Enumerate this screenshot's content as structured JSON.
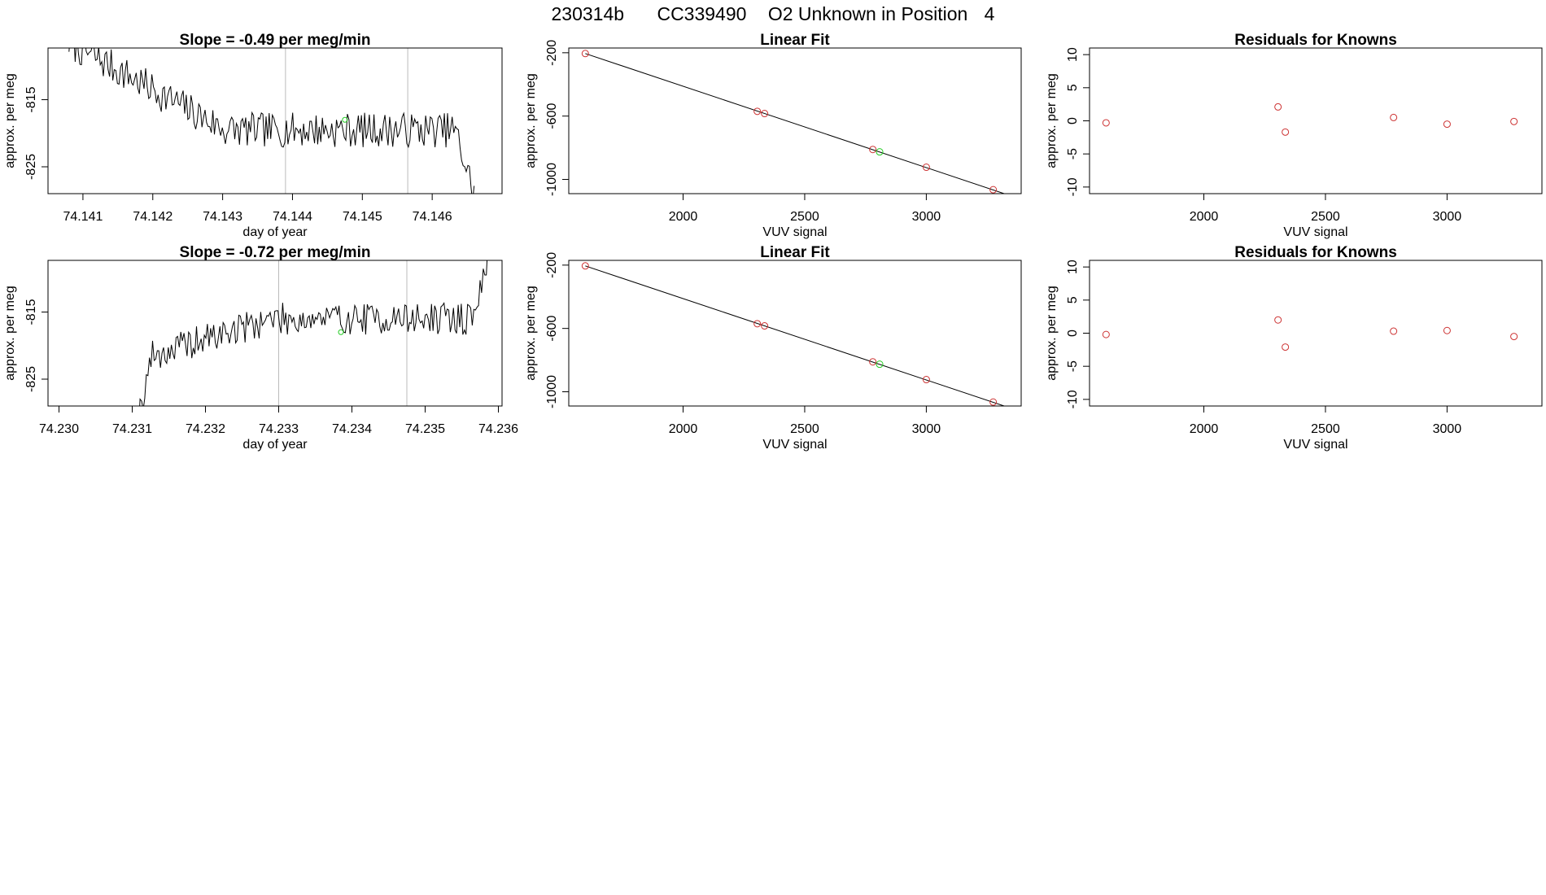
{
  "figure_title": {
    "run": "230314b",
    "tank": "CC339490",
    "label": "O2 Unknown in Position",
    "position": "4"
  },
  "chart_data": [
    {
      "id": "ts1",
      "type": "line",
      "title": "Slope =  -0.49  per meg/min",
      "xlabel": "day of year",
      "ylabel": "approx. per meg",
      "xlim": [
        74.1405,
        74.147
      ],
      "ylim": [
        -829.0,
        -807.3
      ],
      "xticks": [
        74.141,
        74.142,
        74.143,
        74.144,
        74.145,
        74.146
      ],
      "xtick_labels": [
        "74.141",
        "74.142",
        "74.143",
        "74.144",
        "74.145",
        "74.146"
      ],
      "yticks": [
        -815,
        -825
      ],
      "ytick_labels": [
        "-815",
        "-825"
      ],
      "vlines": [
        74.1439,
        74.14565
      ],
      "series_start": 74.1408,
      "series_end": 74.1466,
      "series_points": 260,
      "baseline_start": -806.5,
      "baseline_end": -819.5,
      "noise": 2.6,
      "seed": 7,
      "marker": {
        "x": 74.14475,
        "y": -818.0,
        "color": "#22cc22"
      }
    },
    {
      "id": "fit1",
      "type": "scatter",
      "title": "Linear Fit",
      "xlabel": "VUV signal",
      "ylabel": "approx. per meg",
      "xlim": [
        1530,
        3390
      ],
      "ylim": [
        -1090,
        -170
      ],
      "xticks": [
        2000,
        2500,
        3000
      ],
      "xtick_labels": [
        "2000",
        "2500",
        "3000"
      ],
      "yticks": [
        -200,
        -600,
        -1000
      ],
      "ytick_labels": [
        "-200",
        "-600",
        "-1000"
      ],
      "line": {
        "x": [
          1598,
          3330
        ],
        "y": [
          -205,
          -1095
        ]
      },
      "known_points": {
        "x": [
          1598,
          2305,
          2335,
          2780,
          3000,
          3275
        ],
        "y": [
          -205,
          -570,
          -584,
          -811,
          -923,
          -1065
        ]
      },
      "unknown_points": {
        "x": [
          2808
        ],
        "y": [
          -826
        ]
      },
      "known_color": "#cd3333",
      "unknown_color": "#22cc22"
    },
    {
      "id": "res1",
      "type": "scatter",
      "title": "Residuals for Knowns",
      "xlabel": "VUV signal",
      "ylabel": "approx. per meg",
      "xlim": [
        1530,
        3390
      ],
      "ylim": [
        -11,
        11
      ],
      "xticks": [
        2000,
        2500,
        3000
      ],
      "xtick_labels": [
        "2000",
        "2500",
        "3000"
      ],
      "yticks": [
        10,
        5,
        0,
        -5,
        -10
      ],
      "ytick_labels": [
        "10",
        "5",
        "0",
        "-5",
        "-10"
      ],
      "points": {
        "x": [
          1598,
          2305,
          2335,
          2780,
          3000,
          3275
        ],
        "y": [
          -0.3,
          2.1,
          -1.7,
          0.5,
          -0.5,
          -0.1
        ]
      },
      "color": "#cd3333"
    },
    {
      "id": "ts2",
      "type": "line",
      "title": "Slope =  -0.72  per meg/min",
      "xlabel": "day of year",
      "ylabel": "approx. per meg",
      "xlim": [
        74.22985,
        74.23605
      ],
      "ylim": [
        -829.0,
        -807.3
      ],
      "xticks": [
        74.23,
        74.231,
        74.232,
        74.233,
        74.234,
        74.235,
        74.236
      ],
      "xtick_labels": [
        "74.230",
        "74.231",
        "74.232",
        "74.233",
        "74.234",
        "74.235",
        "74.236"
      ],
      "yticks": [
        -815,
        -825
      ],
      "ytick_labels": [
        "-815",
        "-825"
      ],
      "vlines": [
        74.233,
        74.23475
      ],
      "series_start": 74.231,
      "series_end": 74.2359,
      "series_points": 230,
      "baseline_start": -822.5,
      "baseline_end": -816.0,
      "noise": 2.4,
      "seed": 19,
      "marker": {
        "x": 74.23385,
        "y": -818.0,
        "color": "#22cc22"
      }
    },
    {
      "id": "fit2",
      "type": "scatter",
      "title": "Linear Fit",
      "xlabel": "VUV signal",
      "ylabel": "approx. per meg",
      "xlim": [
        1530,
        3390
      ],
      "ylim": [
        -1090,
        -170
      ],
      "xticks": [
        2000,
        2500,
        3000
      ],
      "xtick_labels": [
        "2000",
        "2500",
        "3000"
      ],
      "yticks": [
        -200,
        -600,
        -1000
      ],
      "ytick_labels": [
        "-200",
        "-600",
        "-1000"
      ],
      "line": {
        "x": [
          1598,
          3330
        ],
        "y": [
          -205,
          -1095
        ]
      },
      "known_points": {
        "x": [
          1598,
          2305,
          2335,
          2780,
          3000,
          3275
        ],
        "y": [
          -205,
          -570,
          -584,
          -811,
          -923,
          -1065
        ]
      },
      "unknown_points": {
        "x": [
          2808
        ],
        "y": [
          -826
        ]
      },
      "known_color": "#cd3333",
      "unknown_color": "#22cc22"
    },
    {
      "id": "res2",
      "type": "scatter",
      "title": "Residuals for Knowns",
      "xlabel": "VUV signal",
      "ylabel": "approx. per meg",
      "xlim": [
        1530,
        3390
      ],
      "ylim": [
        -11,
        11
      ],
      "xticks": [
        2000,
        2500,
        3000
      ],
      "xtick_labels": [
        "2000",
        "2500",
        "3000"
      ],
      "yticks": [
        10,
        5,
        0,
        -5,
        -10
      ],
      "ytick_labels": [
        "10",
        "5",
        "0",
        "-5",
        "-10"
      ],
      "points": {
        "x": [
          1598,
          2305,
          2335,
          2780,
          3000,
          3275
        ],
        "y": [
          -0.2,
          2.0,
          -2.1,
          0.3,
          0.4,
          -0.5
        ]
      },
      "color": "#cd3333"
    }
  ]
}
